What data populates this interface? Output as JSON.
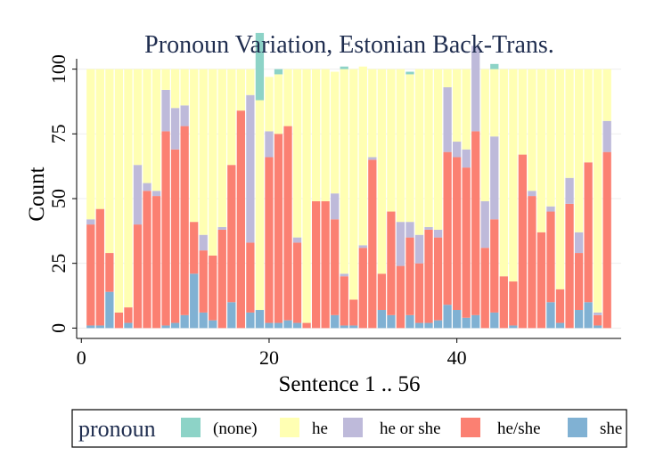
{
  "chart_data": {
    "type": "bar",
    "stacked": true,
    "title": "Pronoun Variation, Estonian Back-Trans.",
    "xlabel": "Sentence 1 .. 56",
    "ylabel": "Count",
    "xlim": [
      -0.5,
      57.5
    ],
    "ylim": [
      -4,
      104
    ],
    "x_ticks": [
      0,
      20,
      40
    ],
    "y_ticks": [
      0,
      25,
      50,
      75,
      100
    ],
    "grid": true,
    "legend": {
      "title": "pronoun",
      "position": "bottom",
      "entries": [
        "(none)",
        "he",
        "he or she",
        "he/she",
        "she"
      ]
    },
    "colors": {
      "(none)": "#8dd3c7",
      "he": "#ffffb3",
      "he or she": "#bebada",
      "he/she": "#fb8072",
      "she": "#80b1d3"
    },
    "stack_order": [
      "she",
      "he/she",
      "he or she",
      "he",
      "(none)"
    ],
    "categories": [
      1,
      2,
      3,
      4,
      5,
      6,
      7,
      8,
      9,
      10,
      11,
      12,
      13,
      14,
      15,
      16,
      17,
      18,
      19,
      20,
      21,
      22,
      23,
      24,
      25,
      26,
      27,
      28,
      29,
      30,
      31,
      32,
      33,
      34,
      35,
      36,
      37,
      38,
      39,
      40,
      41,
      42,
      43,
      44,
      45,
      46,
      47,
      48,
      49,
      50,
      51,
      52,
      53,
      54,
      55,
      56
    ],
    "series": [
      {
        "name": "she",
        "values": [
          1,
          1,
          14,
          0,
          2,
          0,
          0,
          0,
          1,
          2,
          5,
          21,
          6,
          3,
          0,
          10,
          0,
          6,
          7,
          2,
          2,
          3,
          2,
          0,
          0,
          0,
          5,
          1,
          1,
          0,
          0,
          7,
          5,
          0,
          5,
          2,
          2,
          3,
          9,
          7,
          4,
          5,
          0,
          6,
          0,
          1,
          0,
          0,
          0,
          10,
          2,
          0,
          7,
          10,
          1,
          0
        ]
      },
      {
        "name": "he/she",
        "values": [
          39,
          45,
          15,
          6,
          6,
          40,
          53,
          51,
          75,
          67,
          73,
          20,
          24,
          25,
          38,
          53,
          84,
          27,
          0,
          64,
          73,
          75,
          31,
          2,
          49,
          49,
          37,
          19,
          10,
          31,
          65,
          14,
          40,
          24,
          30,
          23,
          36,
          32,
          59,
          59,
          58,
          71,
          31,
          36,
          20,
          17,
          67,
          51,
          37,
          35,
          13,
          48,
          22,
          54,
          4,
          68
        ]
      },
      {
        "name": "he or she",
        "values": [
          2,
          0,
          0,
          0,
          0,
          23,
          3,
          2,
          16,
          16,
          8,
          0,
          6,
          0,
          1,
          0,
          0,
          57,
          0,
          10,
          0,
          0,
          2,
          0,
          0,
          0,
          10,
          1,
          0,
          1,
          1,
          0,
          0,
          17,
          6,
          11,
          1,
          3,
          25,
          6,
          7,
          33,
          18,
          32,
          0,
          0,
          0,
          2,
          0,
          2,
          0,
          10,
          8,
          0,
          1,
          12
        ]
      },
      {
        "name": "he",
        "values": [
          58,
          54,
          71,
          94,
          92,
          37,
          44,
          47,
          8,
          15,
          14,
          59,
          64,
          72,
          61,
          37,
          16,
          10,
          81,
          21,
          23,
          22,
          65,
          98,
          51,
          51,
          47,
          79,
          89,
          69,
          34,
          79,
          55,
          59,
          57,
          64,
          61,
          62,
          7,
          28,
          31,
          -9,
          51,
          26,
          80,
          82,
          33,
          47,
          63,
          53,
          85,
          42,
          63,
          36,
          94,
          20
        ]
      },
      {
        "name": "(none)",
        "values": [
          0,
          0,
          0,
          0,
          0,
          0,
          0,
          0,
          0,
          0,
          0,
          0,
          0,
          0,
          0,
          0,
          0,
          0,
          26,
          0,
          2,
          0,
          0,
          0,
          0,
          0,
          0,
          1,
          0,
          0,
          0,
          0,
          0,
          0,
          1,
          0,
          0,
          0,
          0,
          0,
          0,
          0,
          0,
          2,
          0,
          0,
          0,
          0,
          0,
          0,
          0,
          0,
          0,
          0,
          0,
          0
        ]
      }
    ]
  }
}
